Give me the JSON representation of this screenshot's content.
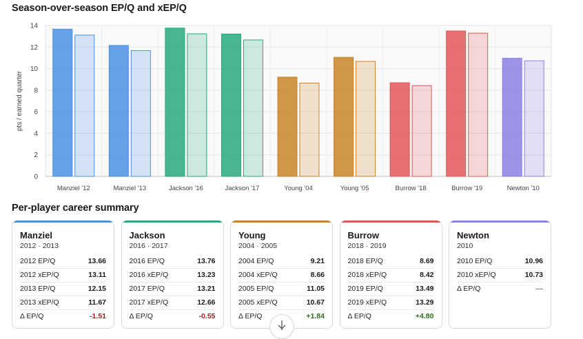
{
  "chart_title": "Season-over-season EP/Q and xEP/Q",
  "summary_title": "Per-player career summary",
  "colors": {
    "Manziel": "#4a90e2",
    "Jackson": "#2aa87e",
    "Young": "#c8842a",
    "Burrow": "#e05658",
    "Newton": "#8b80e3"
  },
  "chart_data": {
    "type": "bar",
    "title": "Season-over-season EP/Q and xEP/Q",
    "xlabel": "",
    "ylabel": "pts / earned quarter",
    "ylim": [
      0,
      14
    ],
    "yticks": [
      0,
      2,
      4,
      6,
      8,
      10,
      12,
      14
    ],
    "grid": true,
    "categories": [
      "Manziel '12",
      "Manziel '13",
      "Jackson '16",
      "Jackson '17",
      "Young '04",
      "Young '05",
      "Burrow '18",
      "Burrow '19",
      "Newton '10"
    ],
    "players": [
      "Manziel",
      "Manziel",
      "Jackson",
      "Jackson",
      "Young",
      "Young",
      "Burrow",
      "Burrow",
      "Newton"
    ],
    "series": [
      {
        "values": [
          13.66,
          12.15,
          13.76,
          13.21,
          9.21,
          11.05,
          8.69,
          13.49,
          10.96
        ]
      },
      {
        "values": [
          13.11,
          11.67,
          13.23,
          12.66,
          8.66,
          10.67,
          8.42,
          13.29,
          10.73
        ]
      }
    ]
  },
  "cards": [
    {
      "name": "Manziel",
      "years": "2012 · 2013",
      "color": "#4a90e2",
      "rows": [
        {
          "label": "2012 EP/Q",
          "value": "13.66"
        },
        {
          "label": "2012 xEP/Q",
          "value": "13.11"
        },
        {
          "label": "2013 EP/Q",
          "value": "12.15"
        },
        {
          "label": "2013 xEP/Q",
          "value": "11.67"
        },
        {
          "label": "Δ EP/Q",
          "value": "-1.51",
          "tone": "neg"
        }
      ]
    },
    {
      "name": "Jackson",
      "years": "2016 · 2017",
      "color": "#2aa87e",
      "rows": [
        {
          "label": "2016 EP/Q",
          "value": "13.76"
        },
        {
          "label": "2016 xEP/Q",
          "value": "13.23"
        },
        {
          "label": "2017 EP/Q",
          "value": "13.21"
        },
        {
          "label": "2017 xEP/Q",
          "value": "12.66"
        },
        {
          "label": "Δ EP/Q",
          "value": "-0.55",
          "tone": "neg"
        }
      ]
    },
    {
      "name": "Young",
      "years": "2004 · 2005",
      "color": "#c8842a",
      "rows": [
        {
          "label": "2004 EP/Q",
          "value": "9.21"
        },
        {
          "label": "2004 xEP/Q",
          "value": "8.66"
        },
        {
          "label": "2005 EP/Q",
          "value": "11.05"
        },
        {
          "label": "2005 xEP/Q",
          "value": "10.67"
        },
        {
          "label": "Δ EP/Q",
          "value": "+1.84",
          "tone": "pos"
        }
      ]
    },
    {
      "name": "Burrow",
      "years": "2018 · 2019",
      "color": "#e05658",
      "rows": [
        {
          "label": "2018 EP/Q",
          "value": "8.69"
        },
        {
          "label": "2018 xEP/Q",
          "value": "8.42"
        },
        {
          "label": "2019 EP/Q",
          "value": "13.49"
        },
        {
          "label": "2019 xEP/Q",
          "value": "13.29"
        },
        {
          "label": "Δ EP/Q",
          "value": "+4.80",
          "tone": "pos"
        }
      ]
    },
    {
      "name": "Newton",
      "years": "2010",
      "color": "#8b80e3",
      "rows": [
        {
          "label": "2010 EP/Q",
          "value": "10.96"
        },
        {
          "label": "2010 xEP/Q",
          "value": "10.73"
        },
        {
          "label": "Δ EP/Q",
          "value": "—",
          "tone": "dash"
        }
      ]
    }
  ],
  "scroll_icon": "arrow-down-icon"
}
